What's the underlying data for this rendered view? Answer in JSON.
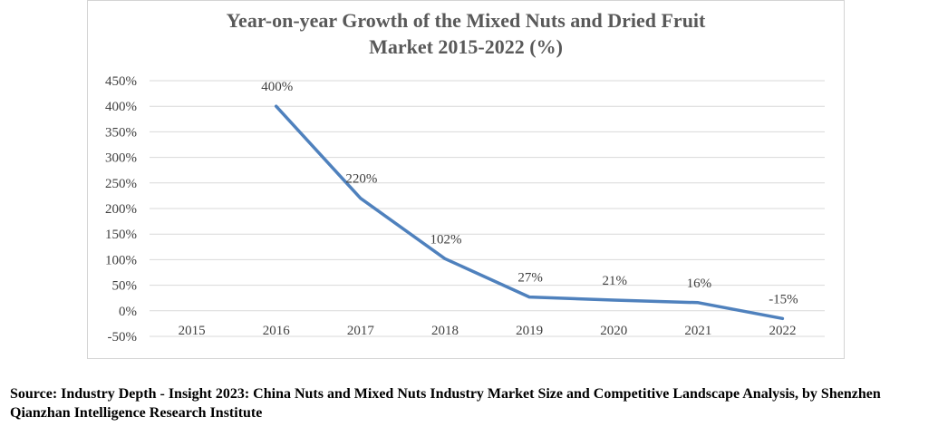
{
  "chart_data": {
    "type": "line",
    "title_lines": [
      "Year-on-year Growth of the Mixed Nuts and Dried Fruit",
      "Market 2015-2022 (%)"
    ],
    "categories": [
      "2015",
      "2016",
      "2017",
      "2018",
      "2019",
      "2020",
      "2021",
      "2022"
    ],
    "series": [
      {
        "name": "Year-on-year growth",
        "values": [
          null,
          400,
          220,
          102,
          27,
          21,
          16,
          -15
        ],
        "labels": [
          "",
          "400%",
          "220%",
          "102%",
          "27%",
          "21%",
          "16%",
          "-15%"
        ],
        "color": "#4f81bd"
      }
    ],
    "y_ticks": [
      {
        "value": 450,
        "label": "450%"
      },
      {
        "value": 400,
        "label": "400%"
      },
      {
        "value": 350,
        "label": "350%"
      },
      {
        "value": 300,
        "label": "300%"
      },
      {
        "value": 250,
        "label": "250%"
      },
      {
        "value": 200,
        "label": "200%"
      },
      {
        "value": 150,
        "label": "150%"
      },
      {
        "value": 100,
        "label": "100%"
      },
      {
        "value": 50,
        "label": "50%"
      },
      {
        "value": 0,
        "label": "0%"
      },
      {
        "value": -50,
        "label": "-50%"
      }
    ],
    "ylim": [
      -50,
      450
    ],
    "xlabel": "",
    "ylabel": "",
    "grid": true,
    "legend": "none"
  },
  "source": {
    "text": "Source: Industry Depth - Insight 2023: China Nuts and Mixed Nuts Industry Market Size and Competitive Landscape Analysis, by Shenzhen Qianzhan Intelligence Research Institute"
  }
}
